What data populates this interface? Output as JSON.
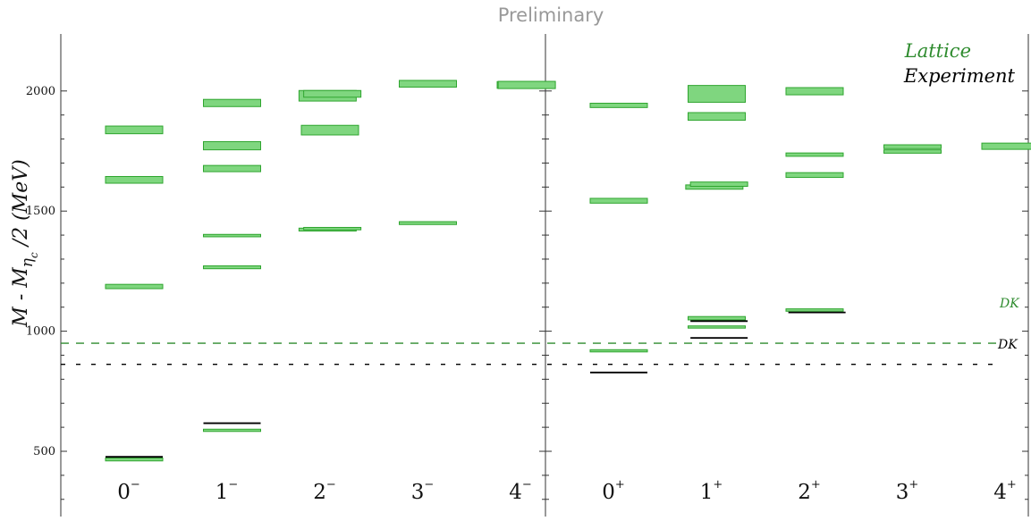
{
  "watermark": "Preliminary",
  "chart_data": {
    "type": "level-spectrum",
    "ylabel": {
      "main": "M - M",
      "sub1": "η",
      "sub2": "c",
      "tail": " /2  (MeV)"
    },
    "ylim": [
      160,
      2080
    ],
    "yticks": [
      500,
      1000,
      1500,
      2000
    ],
    "colors": {
      "lattice_fill": "#7fd67f",
      "lattice_edge": "#2fa52f",
      "lattice_legend": "#2e8b2e",
      "experiment": "#000000",
      "threshold_lattice": "#2e8b2e",
      "threshold_experiment": "#000000"
    },
    "legend": {
      "lattice": "Lattice",
      "experiment": "Experiment",
      "placement": "top-right"
    },
    "thresholds": [
      {
        "label": "DK",
        "source": "lattice",
        "value": 950
      },
      {
        "label": "DK",
        "source": "experiment",
        "value": 862
      }
    ],
    "panels": [
      {
        "name": "negative-parity",
        "channels": [
          {
            "label": "0",
            "sign": "−"
          },
          {
            "label": "1",
            "sign": "−"
          },
          {
            "label": "2",
            "sign": "−"
          },
          {
            "label": "3",
            "sign": "−"
          },
          {
            "label": "4",
            "sign": "−"
          }
        ]
      },
      {
        "name": "positive-parity",
        "channels": [
          {
            "label": "0",
            "sign": "+"
          },
          {
            "label": "1",
            "sign": "+"
          },
          {
            "label": "2",
            "sign": "+"
          },
          {
            "label": "3",
            "sign": "+"
          },
          {
            "label": "4",
            "sign": "+"
          }
        ]
      }
    ],
    "lattice_levels": [
      {
        "panel": 0,
        "channel": 0,
        "value": 1838,
        "error": 16
      },
      {
        "panel": 0,
        "channel": 0,
        "value": 1630,
        "error": 14
      },
      {
        "panel": 0,
        "channel": 0,
        "value": 1186,
        "error": 9
      },
      {
        "panel": 0,
        "channel": 0,
        "value": 466,
        "error": 6
      },
      {
        "panel": 0,
        "channel": 1,
        "value": 1950,
        "error": 15
      },
      {
        "panel": 0,
        "channel": 1,
        "value": 1772,
        "error": 17
      },
      {
        "panel": 0,
        "channel": 1,
        "value": 1677,
        "error": 13
      },
      {
        "panel": 0,
        "channel": 1,
        "value": 1398,
        "error": 5
      },
      {
        "panel": 0,
        "channel": 1,
        "value": 1266,
        "error": 6
      },
      {
        "panel": 0,
        "channel": 1,
        "value": 589,
        "error": 3
      },
      {
        "panel": 0,
        "channel": 2,
        "value": 1980,
        "error": 22,
        "offset": -0.12
      },
      {
        "panel": 0,
        "channel": 2,
        "value": 1988,
        "error": 14,
        "offset": 0.12
      },
      {
        "panel": 0,
        "channel": 2,
        "value": 1837,
        "error": 20
      },
      {
        "panel": 0,
        "channel": 2,
        "value": 1423,
        "error": 6,
        "offset": -0.12
      },
      {
        "panel": 0,
        "channel": 2,
        "value": 1427,
        "error": 5,
        "offset": 0.12
      },
      {
        "panel": 0,
        "channel": 3,
        "value": 2030,
        "error": 14
      },
      {
        "panel": 0,
        "channel": 3,
        "value": 1450,
        "error": 6
      },
      {
        "panel": 0,
        "channel": 4,
        "value": 2025,
        "error": 14
      },
      {
        "panel": 0,
        "channel": 4,
        "value": 2025,
        "error": 15,
        "offset": 0.05
      },
      {
        "panel": 1,
        "channel": 0,
        "value": 1940,
        "error": 9
      },
      {
        "panel": 1,
        "channel": 0,
        "value": 1543,
        "error": 10
      },
      {
        "panel": 1,
        "channel": 0,
        "value": 920,
        "error": 3
      },
      {
        "panel": 1,
        "channel": 1,
        "value": 1988,
        "error": 35
      },
      {
        "panel": 1,
        "channel": 1,
        "value": 1894,
        "error": 16
      },
      {
        "panel": 1,
        "channel": 1,
        "value": 1600,
        "error": 9,
        "offset": -0.12
      },
      {
        "panel": 1,
        "channel": 1,
        "value": 1612,
        "error": 9,
        "offset": 0.12
      },
      {
        "panel": 1,
        "channel": 1,
        "value": 1054,
        "error": 7
      },
      {
        "panel": 1,
        "channel": 1,
        "value": 1018,
        "error": 4
      },
      {
        "panel": 1,
        "channel": 2,
        "value": 1999,
        "error": 15
      },
      {
        "panel": 1,
        "channel": 2,
        "value": 1735,
        "error": 7
      },
      {
        "panel": 1,
        "channel": 2,
        "value": 1650,
        "error": 10
      },
      {
        "panel": 1,
        "channel": 2,
        "value": 1088,
        "error": 5
      },
      {
        "panel": 1,
        "channel": 3,
        "value": 1768,
        "error": 8
      },
      {
        "panel": 1,
        "channel": 3,
        "value": 1748,
        "error": 7
      },
      {
        "panel": 1,
        "channel": 4,
        "value": 1770,
        "error": 13
      }
    ],
    "experiment_levels": [
      {
        "panel": 0,
        "channel": 0,
        "value": 477
      },
      {
        "panel": 0,
        "channel": 1,
        "value": 617
      },
      {
        "panel": 1,
        "channel": 0,
        "value": 828
      },
      {
        "panel": 1,
        "channel": 1,
        "value": 1042,
        "offset": 0.12
      },
      {
        "panel": 1,
        "channel": 1,
        "value": 972,
        "offset": 0.12
      },
      {
        "panel": 1,
        "channel": 2,
        "value": 1078,
        "offset": 0.12
      }
    ]
  }
}
